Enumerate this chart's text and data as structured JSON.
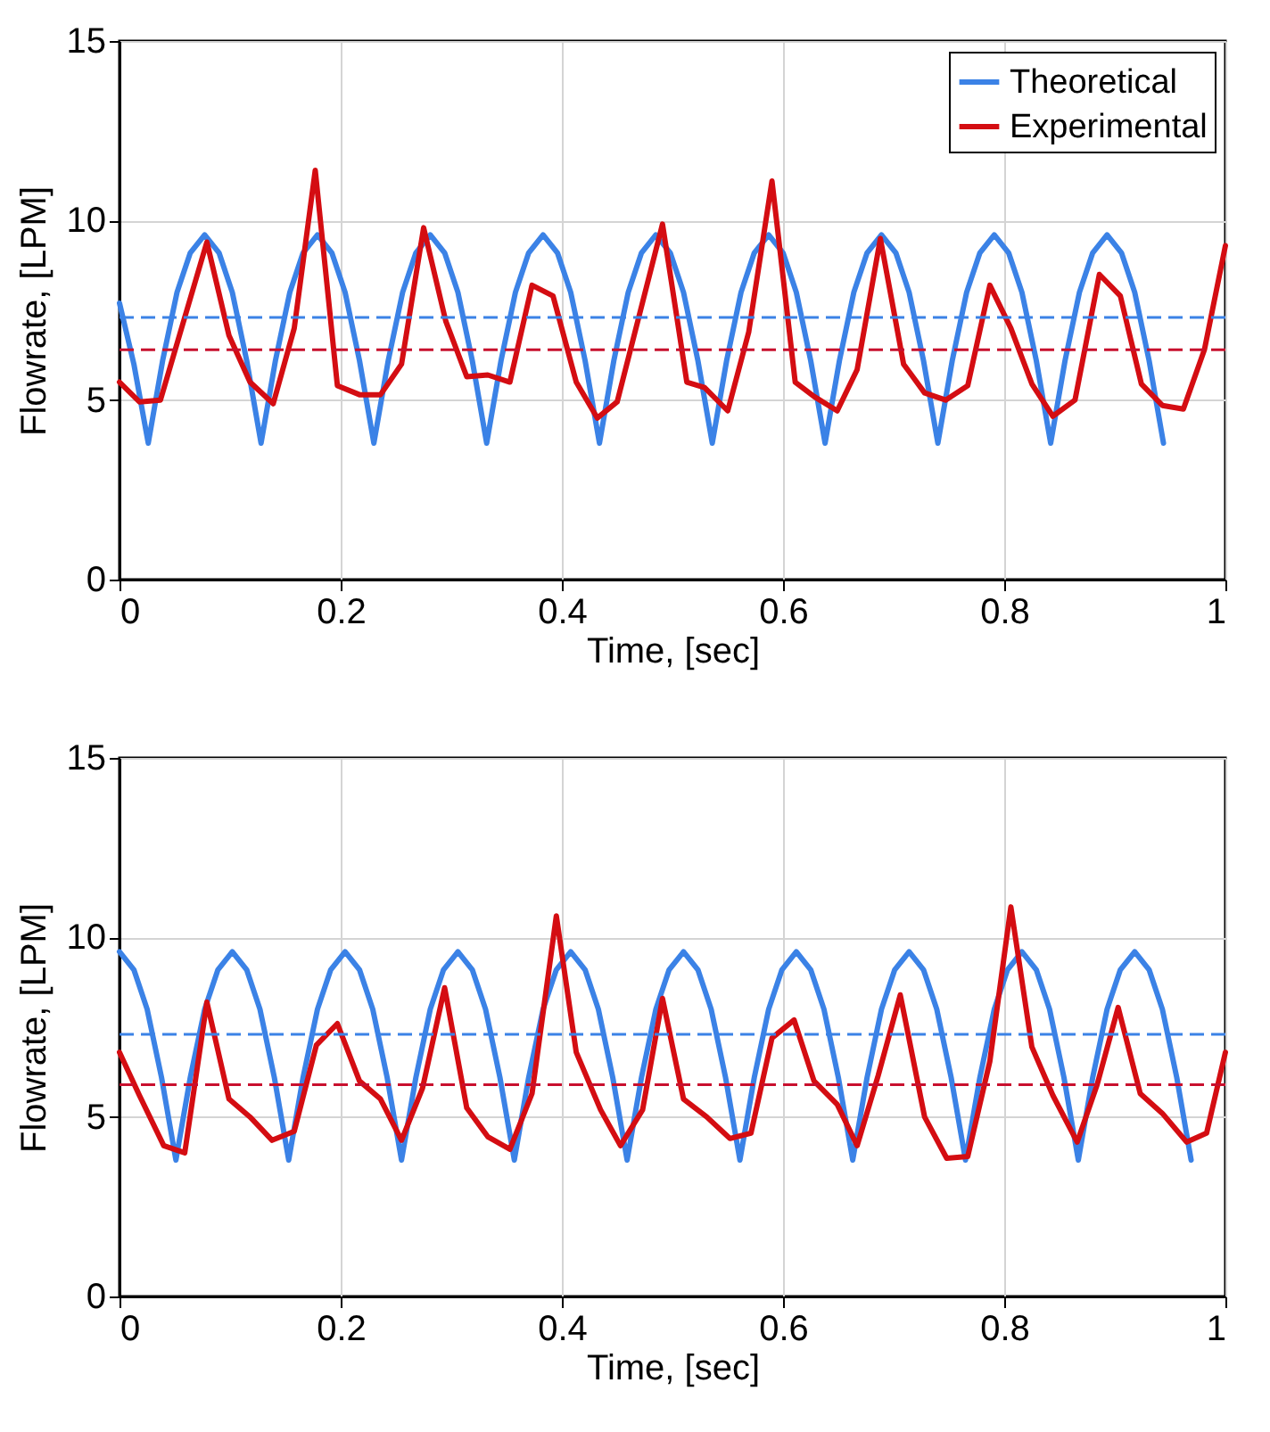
{
  "chart_data": [
    {
      "type": "line",
      "xlabel": "Time, [sec]",
      "ylabel": "Flowrate, [LPM]",
      "xlim": [
        0,
        1
      ],
      "xticks": [
        0,
        0.2,
        0.4,
        0.6,
        0.8,
        1
      ],
      "ylim": [
        0,
        15
      ],
      "yticks": [
        0,
        5,
        10,
        15
      ],
      "grid": true,
      "legend": "top right",
      "line_style": "solid",
      "series": [
        {
          "name": "Theoretical",
          "color": "#3b82e6",
          "x": [
            0,
            0.013,
            0.026,
            0.039,
            0.052,
            0.064,
            0.077,
            0.09,
            0.102,
            0.115,
            0.128,
            0.141,
            0.154,
            0.166,
            0.179,
            0.192,
            0.204,
            0.217,
            0.23,
            0.243,
            0.256,
            0.268,
            0.281,
            0.294,
            0.306,
            0.319,
            0.332,
            0.345,
            0.358,
            0.37,
            0.383,
            0.396,
            0.408,
            0.421,
            0.434,
            0.447,
            0.46,
            0.472,
            0.485,
            0.498,
            0.51,
            0.523,
            0.536,
            0.549,
            0.562,
            0.574,
            0.587,
            0.6,
            0.612,
            0.625,
            0.638,
            0.651,
            0.664,
            0.676,
            0.689,
            0.702,
            0.714,
            0.727,
            0.74,
            0.753,
            0.766,
            0.778,
            0.791,
            0.804,
            0.816,
            0.829,
            0.842,
            0.855,
            0.868,
            0.88,
            0.893,
            0.906,
            0.918,
            0.931,
            0.944
          ],
          "values": [
            7.7,
            6.0,
            3.8,
            6.1,
            8.0,
            9.1,
            9.6,
            9.1,
            8.0,
            6.1,
            3.8,
            6.1,
            8.0,
            9.1,
            9.6,
            9.1,
            8.0,
            6.1,
            3.8,
            6.1,
            8.0,
            9.1,
            9.6,
            9.1,
            8.0,
            6.1,
            3.8,
            6.1,
            8.0,
            9.1,
            9.6,
            9.1,
            8.0,
            6.1,
            3.8,
            6.1,
            8.0,
            9.1,
            9.6,
            9.1,
            8.0,
            6.1,
            3.8,
            6.1,
            8.0,
            9.1,
            9.6,
            9.1,
            8.0,
            6.1,
            3.8,
            6.1,
            8.0,
            9.1,
            9.6,
            9.1,
            8.0,
            6.1,
            3.8,
            6.1,
            8.0,
            9.1,
            9.6,
            9.1,
            8.0,
            6.1,
            3.8,
            6.1,
            8.0,
            9.1,
            9.6,
            9.1,
            8.0,
            6.1,
            3.8
          ]
        },
        {
          "name": "Experimental",
          "color": "#d40d12",
          "x": [
            0,
            0.018,
            0.037,
            0.079,
            0.099,
            0.118,
            0.139,
            0.158,
            0.177,
            0.197,
            0.217,
            0.236,
            0.255,
            0.275,
            0.295,
            0.314,
            0.333,
            0.353,
            0.373,
            0.392,
            0.413,
            0.432,
            0.45,
            0.491,
            0.513,
            0.529,
            0.55,
            0.569,
            0.59,
            0.611,
            0.628,
            0.649,
            0.667,
            0.688,
            0.709,
            0.728,
            0.747,
            0.767,
            0.787,
            0.806,
            0.825,
            0.844,
            0.864,
            0.886,
            0.905,
            0.924,
            0.943,
            0.962,
            0.981,
            1
          ],
          "values": [
            5.5,
            4.95,
            5.0,
            9.4,
            6.8,
            5.5,
            4.9,
            7.0,
            11.4,
            5.4,
            5.15,
            5.15,
            6.0,
            9.8,
            7.2,
            5.65,
            5.7,
            5.5,
            8.2,
            7.9,
            5.5,
            4.5,
            4.95,
            9.9,
            5.5,
            5.35,
            4.7,
            6.9,
            11.1,
            5.5,
            5.1,
            4.7,
            5.85,
            9.5,
            6.0,
            5.2,
            5.0,
            5.4,
            8.2,
            7.0,
            5.45,
            4.55,
            5.0,
            8.5,
            7.9,
            5.45,
            4.85,
            4.75,
            6.4,
            9.3
          ]
        }
      ],
      "ref_lines": [
        {
          "axis": "y",
          "value": 7.3,
          "color": "#3b82e6",
          "line_style": "dashed"
        },
        {
          "axis": "y",
          "value": 6.4,
          "color": "#c8102e",
          "line_style": "dashed"
        }
      ]
    },
    {
      "type": "line",
      "xlabel": "Time, [sec]",
      "ylabel": "Flowrate, [LPM]",
      "xlim": [
        0,
        1
      ],
      "xticks": [
        0,
        0.2,
        0.4,
        0.6,
        0.8,
        1
      ],
      "ylim": [
        0,
        15
      ],
      "yticks": [
        0,
        5,
        10,
        15
      ],
      "grid": true,
      "legend": "top right",
      "line_style": "solid",
      "series": [
        {
          "name": "Theoretical",
          "color": "#3b82e6",
          "x": [
            0,
            0.013,
            0.025,
            0.038,
            0.051,
            0.064,
            0.077,
            0.089,
            0.102,
            0.115,
            0.127,
            0.14,
            0.153,
            0.166,
            0.179,
            0.191,
            0.204,
            0.217,
            0.229,
            0.242,
            0.255,
            0.268,
            0.281,
            0.293,
            0.306,
            0.319,
            0.331,
            0.344,
            0.357,
            0.37,
            0.383,
            0.395,
            0.408,
            0.421,
            0.433,
            0.446,
            0.459,
            0.472,
            0.485,
            0.497,
            0.51,
            0.523,
            0.535,
            0.548,
            0.561,
            0.574,
            0.587,
            0.599,
            0.612,
            0.625,
            0.637,
            0.65,
            0.663,
            0.676,
            0.689,
            0.701,
            0.714,
            0.727,
            0.739,
            0.752,
            0.765,
            0.778,
            0.791,
            0.803,
            0.816,
            0.829,
            0.841,
            0.854,
            0.867,
            0.88,
            0.893,
            0.905,
            0.918,
            0.931,
            0.943,
            0.956,
            0.969
          ],
          "values": [
            9.6,
            9.1,
            8.0,
            6.1,
            3.8,
            6.1,
            8.0,
            9.1,
            9.6,
            9.1,
            8.0,
            6.1,
            3.8,
            6.1,
            8.0,
            9.1,
            9.6,
            9.1,
            8.0,
            6.1,
            3.8,
            6.1,
            8.0,
            9.1,
            9.6,
            9.1,
            8.0,
            6.1,
            3.8,
            6.1,
            8.0,
            9.1,
            9.6,
            9.1,
            8.0,
            6.1,
            3.8,
            6.1,
            8.0,
            9.1,
            9.6,
            9.1,
            8.0,
            6.1,
            3.8,
            6.1,
            8.0,
            9.1,
            9.6,
            9.1,
            8.0,
            6.1,
            3.8,
            6.1,
            8.0,
            9.1,
            9.6,
            9.1,
            8.0,
            6.1,
            3.8,
            6.1,
            8.0,
            9.1,
            9.6,
            9.1,
            8.0,
            6.1,
            3.8,
            6.1,
            8.0,
            9.1,
            9.6,
            9.1,
            8.0,
            6.1,
            3.8
          ]
        },
        {
          "name": "Experimental",
          "color": "#d40d12",
          "x": [
            0,
            0.018,
            0.04,
            0.059,
            0.079,
            0.099,
            0.118,
            0.138,
            0.158,
            0.178,
            0.197,
            0.217,
            0.236,
            0.255,
            0.274,
            0.294,
            0.314,
            0.333,
            0.353,
            0.373,
            0.395,
            0.413,
            0.435,
            0.453,
            0.473,
            0.491,
            0.51,
            0.531,
            0.552,
            0.571,
            0.59,
            0.61,
            0.628,
            0.649,
            0.667,
            0.686,
            0.706,
            0.728,
            0.748,
            0.767,
            0.787,
            0.806,
            0.825,
            0.844,
            0.866,
            0.884,
            0.903,
            0.923,
            0.943,
            0.965,
            0.983,
            1
          ],
          "values": [
            6.8,
            5.6,
            4.2,
            4.0,
            8.2,
            5.5,
            5.0,
            4.35,
            4.6,
            7.0,
            7.6,
            6.0,
            5.5,
            4.35,
            5.8,
            8.6,
            5.25,
            4.45,
            4.1,
            5.65,
            10.6,
            6.8,
            5.2,
            4.2,
            5.2,
            8.3,
            5.5,
            5.0,
            4.4,
            4.55,
            7.2,
            7.7,
            6.0,
            5.35,
            4.2,
            6.15,
            8.4,
            5.0,
            3.85,
            3.9,
            6.55,
            10.85,
            6.95,
            5.6,
            4.3,
            5.9,
            8.05,
            5.65,
            5.1,
            4.3,
            4.55,
            6.8
          ]
        }
      ],
      "ref_lines": [
        {
          "axis": "y",
          "value": 7.3,
          "color": "#3b82e6",
          "line_style": "dashed"
        },
        {
          "axis": "y",
          "value": 5.9,
          "color": "#c8102e",
          "line_style": "dashed"
        }
      ]
    }
  ]
}
